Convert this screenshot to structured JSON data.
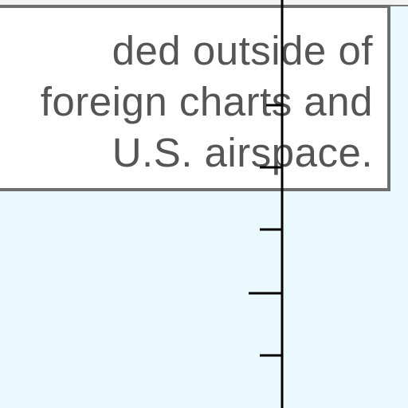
{
  "map_note": {
    "lines": [
      "ded outside of",
      "foreign charts and",
      "U.S. airspace."
    ]
  },
  "colors": {
    "background": "#e9f9fe",
    "box_fill": "#ffffff",
    "box_border": "#6f6f6f",
    "text": "#555555",
    "scale_line": "#000000"
  },
  "scale_bar": {
    "major_tick_count": 1,
    "minor_tick_count": 5
  }
}
